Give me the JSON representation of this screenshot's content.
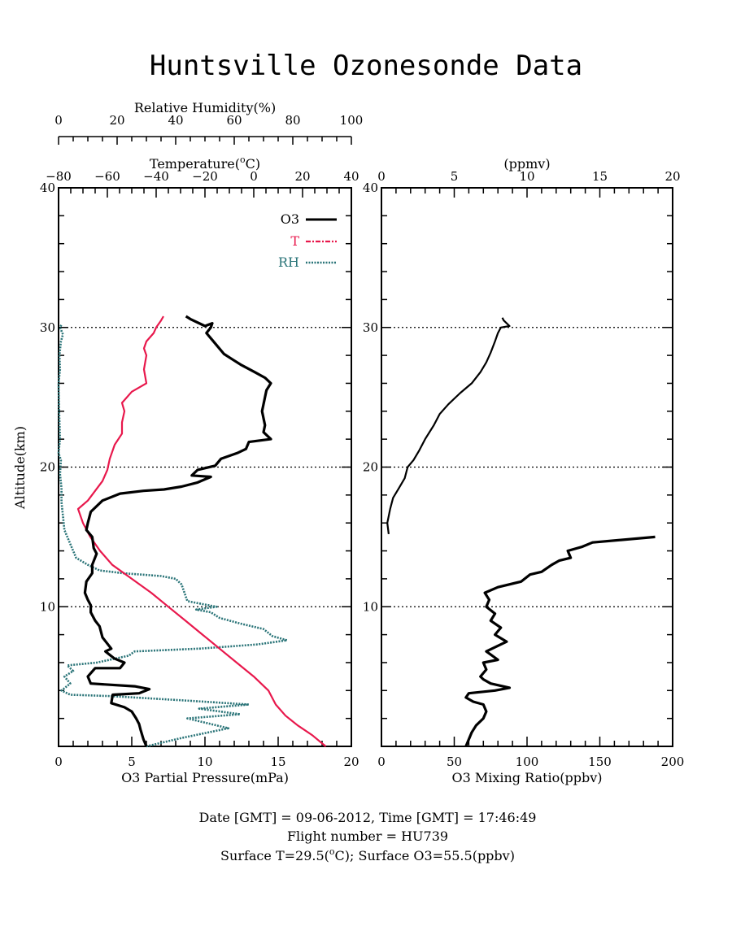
{
  "title": "Huntsville Ozonesonde Data",
  "colors": {
    "o3": "#000000",
    "t": "#e8184c",
    "rh": "#2a7478"
  },
  "left_panel": {
    "rh_axis_label": "Relative Humidity(%)",
    "rh_ticks": [
      "0",
      "20",
      "40",
      "60",
      "80",
      "100"
    ],
    "temp_axis_label_main": "Temperature(",
    "temp_axis_label_sup": "o",
    "temp_axis_label_end": "C)",
    "temp_ticks": [
      "−80",
      "−60",
      "−40",
      "−20",
      "0",
      "20",
      "40"
    ],
    "x_axis_label": "O3 Partial Pressure(mPa)",
    "x_ticks": [
      "0",
      "5",
      "10",
      "15",
      "20"
    ],
    "y_axis_label": "Altitude(km)",
    "y_ticks": [
      "10",
      "20",
      "30",
      "40"
    ],
    "legend": [
      {
        "label": "O3",
        "color": "#000000",
        "style": "solid"
      },
      {
        "label": "T",
        "color": "#e8184c",
        "style": "dashdot"
      },
      {
        "label": "RH",
        "color": "#2a7478",
        "style": "dotted"
      }
    ]
  },
  "right_panel": {
    "top_axis_label": "(ppmv)",
    "top_ticks": [
      "0",
      "5",
      "10",
      "15",
      "20"
    ],
    "x_axis_label": "O3 Mixing Ratio(ppbv)",
    "x_ticks": [
      "0",
      "50",
      "100",
      "150",
      "200"
    ],
    "y_ticks": [
      "10",
      "20",
      "30",
      "40"
    ]
  },
  "footer": {
    "line1": "Date [GMT] = 09-06-2012,  Time [GMT] = 17:46:49",
    "line2": "Flight number = HU739",
    "line3_a": "Surface T=29.5(",
    "line3_sup": "o",
    "line3_b": "C); Surface O3=55.5(ppbv)"
  },
  "chart_data": [
    {
      "type": "line",
      "panel": "left",
      "y_label": "Altitude(km)",
      "ylim": [
        0,
        40
      ],
      "reference_lines_y": [
        10,
        20,
        30
      ],
      "series": [
        {
          "name": "O3",
          "axis": "O3 Partial Pressure(mPa)",
          "xlim": [
            0,
            20
          ],
          "points": [
            [
              6.0,
              0.0
            ],
            [
              5.8,
              0.5
            ],
            [
              5.6,
              1.2
            ],
            [
              5.5,
              1.6
            ],
            [
              5.3,
              2.0
            ],
            [
              5.0,
              2.5
            ],
            [
              4.5,
              2.8
            ],
            [
              3.6,
              3.1
            ],
            [
              3.7,
              3.7
            ],
            [
              5.5,
              3.8
            ],
            [
              6.2,
              4.1
            ],
            [
              5.2,
              4.3
            ],
            [
              2.2,
              4.5
            ],
            [
              2.0,
              5.0
            ],
            [
              2.5,
              5.6
            ],
            [
              4.2,
              5.6
            ],
            [
              4.5,
              6.0
            ],
            [
              3.8,
              6.3
            ],
            [
              3.2,
              6.8
            ],
            [
              3.6,
              7.0
            ],
            [
              3.0,
              7.8
            ],
            [
              2.8,
              8.6
            ],
            [
              2.5,
              9.0
            ],
            [
              2.2,
              9.6
            ],
            [
              2.2,
              10.1
            ],
            [
              2.0,
              10.5
            ],
            [
              1.8,
              11.0
            ],
            [
              1.9,
              11.8
            ],
            [
              2.3,
              12.4
            ],
            [
              2.3,
              13.0
            ],
            [
              2.6,
              13.8
            ],
            [
              2.4,
              14.2
            ],
            [
              2.3,
              15.0
            ],
            [
              1.9,
              15.5
            ],
            [
              2.0,
              16.0
            ],
            [
              2.2,
              16.8
            ],
            [
              3.0,
              17.6
            ],
            [
              4.2,
              18.1
            ],
            [
              5.8,
              18.3
            ],
            [
              7.2,
              18.4
            ],
            [
              8.4,
              18.6
            ],
            [
              9.5,
              18.9
            ],
            [
              10.4,
              19.3
            ],
            [
              9.1,
              19.4
            ],
            [
              9.5,
              19.8
            ],
            [
              10.7,
              20.1
            ],
            [
              11.1,
              20.6
            ],
            [
              12.2,
              21.0
            ],
            [
              12.8,
              21.3
            ],
            [
              13.0,
              21.8
            ],
            [
              14.5,
              22.0
            ],
            [
              14.0,
              22.5
            ],
            [
              14.1,
              23.0
            ],
            [
              14.0,
              23.5
            ],
            [
              13.9,
              24.0
            ],
            [
              14.0,
              24.5
            ],
            [
              14.1,
              25.0
            ],
            [
              14.2,
              25.5
            ],
            [
              14.5,
              26.0
            ],
            [
              14.1,
              26.4
            ],
            [
              13.4,
              26.8
            ],
            [
              12.5,
              27.3
            ],
            [
              11.9,
              27.7
            ],
            [
              11.3,
              28.1
            ],
            [
              10.9,
              28.6
            ],
            [
              10.5,
              29.1
            ],
            [
              10.1,
              29.6
            ],
            [
              10.4,
              30.0
            ],
            [
              10.5,
              30.3
            ],
            [
              10.0,
              30.1
            ],
            [
              9.0,
              30.6
            ],
            [
              8.7,
              30.8
            ]
          ]
        },
        {
          "name": "T",
          "axis": "Temperature(oC)",
          "xlim": [
            -80,
            40
          ],
          "points": [
            [
              29.5,
              0.0
            ],
            [
              24.0,
              0.8
            ],
            [
              18.0,
              1.5
            ],
            [
              13.0,
              2.2
            ],
            [
              9.0,
              3.0
            ],
            [
              6.0,
              4.0
            ],
            [
              0.0,
              5.0
            ],
            [
              -7.0,
              6.0
            ],
            [
              -14.0,
              7.0
            ],
            [
              -21.0,
              8.0
            ],
            [
              -28.0,
              9.0
            ],
            [
              -35.0,
              10.0
            ],
            [
              -42.0,
              11.0
            ],
            [
              -50.0,
              12.0
            ],
            [
              -58.0,
              13.0
            ],
            [
              -63.0,
              14.0
            ],
            [
              -67.0,
              15.0
            ],
            [
              -70.0,
              16.0
            ],
            [
              -72.0,
              17.0
            ],
            [
              -68.0,
              17.6
            ],
            [
              -65.0,
              18.3
            ],
            [
              -62.0,
              19.0
            ],
            [
              -60.0,
              19.8
            ],
            [
              -59.0,
              20.6
            ],
            [
              -57.0,
              21.6
            ],
            [
              -54.0,
              22.4
            ],
            [
              -54.0,
              23.2
            ],
            [
              -53.0,
              24.0
            ],
            [
              -54.0,
              24.6
            ],
            [
              -50.0,
              25.4
            ],
            [
              -44.0,
              26.0
            ],
            [
              -45.0,
              27.0
            ],
            [
              -44.0,
              28.0
            ],
            [
              -45.0,
              28.5
            ],
            [
              -44.0,
              29.0
            ],
            [
              -41.0,
              29.6
            ],
            [
              -40.0,
              30.0
            ],
            [
              -38.0,
              30.5
            ],
            [
              -37.0,
              30.8
            ]
          ]
        },
        {
          "name": "RH",
          "axis": "Relative Humidity(%)",
          "xlim": [
            0,
            100
          ],
          "points": [
            [
              30.0,
              0.0
            ],
            [
              42.0,
              0.6
            ],
            [
              58.0,
              1.3
            ],
            [
              52.0,
              1.6
            ],
            [
              44.0,
              2.0
            ],
            [
              62.0,
              2.3
            ],
            [
              48.0,
              2.7
            ],
            [
              65.0,
              3.0
            ],
            [
              42.0,
              3.3
            ],
            [
              18.0,
              3.6
            ],
            [
              4.0,
              3.7
            ],
            [
              1.0,
              4.0
            ],
            [
              4.0,
              4.5
            ],
            [
              2.0,
              5.0
            ],
            [
              5.0,
              5.4
            ],
            [
              3.0,
              5.8
            ],
            [
              13.0,
              6.0
            ],
            [
              24.0,
              6.5
            ],
            [
              26.0,
              6.8
            ],
            [
              48.0,
              7.0
            ],
            [
              68.0,
              7.3
            ],
            [
              78.0,
              7.6
            ],
            [
              73.0,
              7.9
            ],
            [
              70.0,
              8.4
            ],
            [
              62.0,
              8.8
            ],
            [
              55.0,
              9.2
            ],
            [
              52.0,
              9.6
            ],
            [
              47.0,
              9.8
            ],
            [
              54.0,
              10.0
            ],
            [
              44.0,
              10.4
            ],
            [
              43.0,
              11.0
            ],
            [
              42.0,
              11.6
            ],
            [
              40.0,
              12.0
            ],
            [
              35.0,
              12.2
            ],
            [
              22.0,
              12.4
            ],
            [
              14.0,
              12.6
            ],
            [
              10.0,
              13.0
            ],
            [
              6.0,
              13.5
            ],
            [
              4.0,
              14.5
            ],
            [
              2.0,
              15.5
            ],
            [
              1.5,
              16.5
            ],
            [
              1.0,
              17.5
            ],
            [
              1.0,
              18.5
            ],
            [
              0.5,
              19.5
            ],
            [
              0.8,
              20.5
            ],
            [
              0.0,
              21.0
            ],
            [
              0.5,
              22.0
            ],
            [
              0.2,
              24.0
            ],
            [
              0.0,
              26.0
            ],
            [
              0.5,
              27.0
            ],
            [
              0.3,
              28.0
            ],
            [
              0.8,
              29.0
            ],
            [
              1.5,
              29.5
            ],
            [
              0.5,
              30.0
            ],
            [
              1.0,
              30.2
            ]
          ]
        }
      ]
    },
    {
      "type": "line",
      "panel": "right",
      "x_label": "O3 Mixing Ratio(ppbv)",
      "xlim": [
        0,
        200
      ],
      "ylim": [
        0,
        40
      ],
      "reference_lines_y": [
        10,
        20,
        30
      ],
      "series": [
        {
          "name": "O3",
          "points": [
            [
              58,
              0.0
            ],
            [
              60,
              0.5
            ],
            [
              62,
              1.0
            ],
            [
              65,
              1.5
            ],
            [
              70,
              2.0
            ],
            [
              72,
              2.5
            ],
            [
              70,
              3.0
            ],
            [
              63,
              3.2
            ],
            [
              58,
              3.5
            ],
            [
              60,
              3.8
            ],
            [
              78,
              4.0
            ],
            [
              88,
              4.2
            ],
            [
              75,
              4.5
            ],
            [
              70,
              4.8
            ],
            [
              68,
              5.0
            ],
            [
              72,
              5.5
            ],
            [
              70,
              6.0
            ],
            [
              80,
              6.2
            ],
            [
              72,
              6.8
            ],
            [
              80,
              7.2
            ],
            [
              86,
              7.5
            ],
            [
              78,
              8.0
            ],
            [
              82,
              8.5
            ],
            [
              75,
              9.0
            ],
            [
              78,
              9.5
            ],
            [
              72,
              10.0
            ],
            [
              74,
              10.5
            ],
            [
              71,
              11.0
            ],
            [
              80,
              11.4
            ],
            [
              96,
              11.8
            ],
            [
              102,
              12.3
            ],
            [
              110,
              12.5
            ],
            [
              117,
              13.0
            ],
            [
              122,
              13.3
            ],
            [
              130,
              13.5
            ],
            [
              128,
              14.0
            ],
            [
              138,
              14.3
            ],
            [
              145,
              14.6
            ],
            [
              188,
              15.0
            ],
            [
              5,
              15.2
            ],
            [
              4,
              16.0
            ],
            [
              6,
              17.0
            ],
            [
              8,
              17.8
            ],
            [
              12,
              18.5
            ],
            [
              16,
              19.2
            ],
            [
              18,
              20.0
            ],
            [
              22,
              20.5
            ],
            [
              26,
              21.2
            ],
            [
              30,
              22.0
            ],
            [
              36,
              23.0
            ],
            [
              40,
              23.8
            ],
            [
              46,
              24.5
            ],
            [
              54,
              25.3
            ],
            [
              62,
              26.0
            ],
            [
              68,
              26.8
            ],
            [
              72,
              27.5
            ],
            [
              75,
              28.2
            ],
            [
              78,
              29.0
            ],
            [
              80,
              29.6
            ],
            [
              82,
              30.0
            ],
            [
              88,
              30.1
            ],
            [
              84,
              30.5
            ],
            [
              83,
              30.7
            ]
          ]
        }
      ]
    }
  ]
}
